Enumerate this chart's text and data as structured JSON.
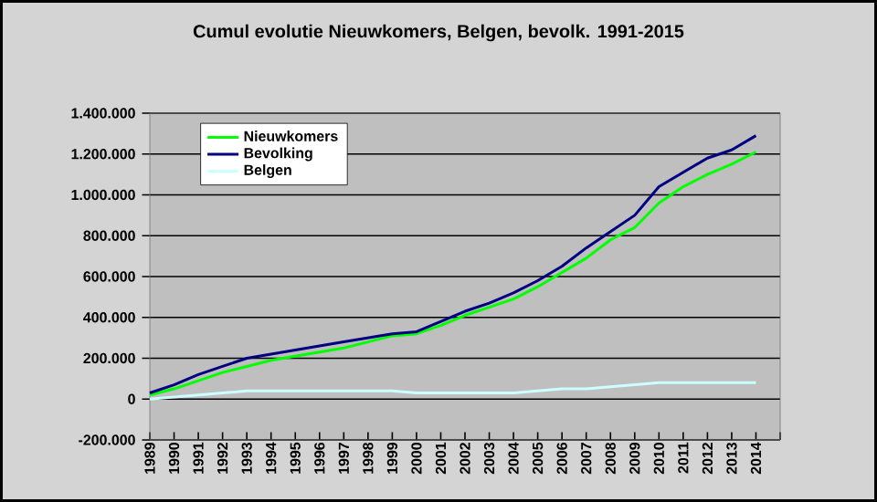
{
  "chart_data": {
    "type": "line",
    "title": "Cumul evolutie Nieuwkomers, Belgen, bevolk. 1991-2015",
    "x": [
      1989,
      1990,
      1991,
      1992,
      1993,
      1994,
      1995,
      1996,
      1997,
      1998,
      1999,
      2000,
      2001,
      2002,
      2003,
      2004,
      2005,
      2006,
      2007,
      2008,
      2009,
      2010,
      2011,
      2012,
      2013,
      2014
    ],
    "series": [
      {
        "name": "Nieuwkomers",
        "color": "#00ff00",
        "values": [
          20000,
          50000,
          90000,
          130000,
          160000,
          190000,
          210000,
          230000,
          250000,
          280000,
          310000,
          320000,
          360000,
          410000,
          450000,
          490000,
          550000,
          620000,
          690000,
          780000,
          840000,
          960000,
          1040000,
          1100000,
          1150000,
          1210000
        ]
      },
      {
        "name": "Bevolking",
        "color": "#000080",
        "values": [
          30000,
          70000,
          120000,
          160000,
          200000,
          220000,
          240000,
          260000,
          280000,
          300000,
          320000,
          330000,
          380000,
          430000,
          470000,
          520000,
          580000,
          650000,
          740000,
          820000,
          900000,
          1040000,
          1110000,
          1180000,
          1220000,
          1290000
        ]
      },
      {
        "name": "Belgen",
        "color": "#ccffff",
        "values": [
          0,
          10000,
          20000,
          30000,
          40000,
          40000,
          40000,
          40000,
          40000,
          40000,
          40000,
          30000,
          30000,
          30000,
          30000,
          30000,
          40000,
          50000,
          50000,
          60000,
          70000,
          80000,
          80000,
          80000,
          80000,
          80000
        ]
      }
    ],
    "xlim": [
      1989,
      2015
    ],
    "xticks": [
      1989,
      1990,
      1991,
      1992,
      1993,
      1994,
      1995,
      1996,
      1997,
      1998,
      1999,
      2000,
      2001,
      2002,
      2003,
      2004,
      2005,
      2006,
      2007,
      2008,
      2009,
      2010,
      2011,
      2012,
      2013,
      2014,
      {
        "value": 2015,
        "label": null
      }
    ],
    "ylim": [
      -200000,
      1400000
    ],
    "yticks": [
      {
        "value": -200000,
        "label": "-200.000"
      },
      0,
      {
        "value": 200000,
        "label": "200.000"
      },
      {
        "value": 400000,
        "label": "400.000"
      },
      {
        "value": 600000,
        "label": "600.000"
      },
      {
        "value": 800000,
        "label": "800.000"
      },
      {
        "value": 1000000,
        "label": "1.000.000"
      },
      {
        "value": 1200000,
        "label": "1.200.000"
      },
      {
        "value": 1400000,
        "label": "1.400.000"
      }
    ],
    "grid": "y",
    "legend": "top left"
  }
}
